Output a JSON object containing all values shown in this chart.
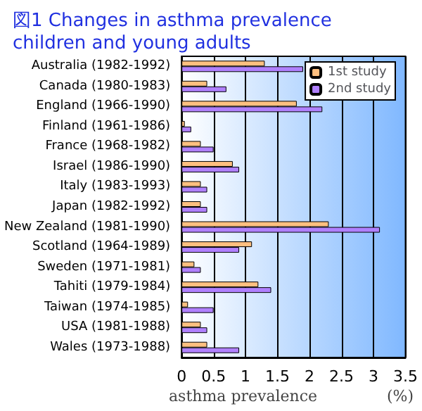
{
  "chart_data": {
    "type": "bar",
    "orientation": "horizontal",
    "title": "図1 Changes in asthma prevalence children and young adults",
    "xlabel": "asthma prevalence",
    "annotations": [
      "(%)"
    ],
    "categories": [
      "Australia (1982-1992)",
      "Canada (1980-1983)",
      "England (1966-1990)",
      "Finland (1961-1986)",
      "France (1968-1982)",
      "Israel (1986-1990)",
      "Italy (1983-1993)",
      "Japan (1982-1992)",
      "New Zealand (1981-1990)",
      "Scotland (1964-1989)",
      "Sweden (1971-1981)",
      "Tahiti (1979-1984)",
      "Taiwan (1974-1985)",
      "USA (1981-1988)",
      "Wales (1973-1988)"
    ],
    "series": [
      {
        "name": "1st study",
        "color": "#ffc080",
        "values": [
          1.3,
          0.4,
          1.8,
          0.05,
          0.3,
          0.8,
          0.3,
          0.3,
          2.3,
          1.1,
          0.2,
          1.2,
          0.1,
          0.3,
          0.4
        ]
      },
      {
        "name": "2nd study",
        "color": "#b080ff",
        "values": [
          1.9,
          0.7,
          2.2,
          0.15,
          0.5,
          0.9,
          0.4,
          0.4,
          3.1,
          0.9,
          0.3,
          1.4,
          0.5,
          0.4,
          0.9
        ]
      }
    ],
    "xlim": [
      0,
      3.5
    ],
    "xticks": [
      0,
      0.5,
      1,
      1.5,
      2,
      2.5,
      3,
      3.5
    ],
    "grid": "x",
    "legend": "top right"
  }
}
